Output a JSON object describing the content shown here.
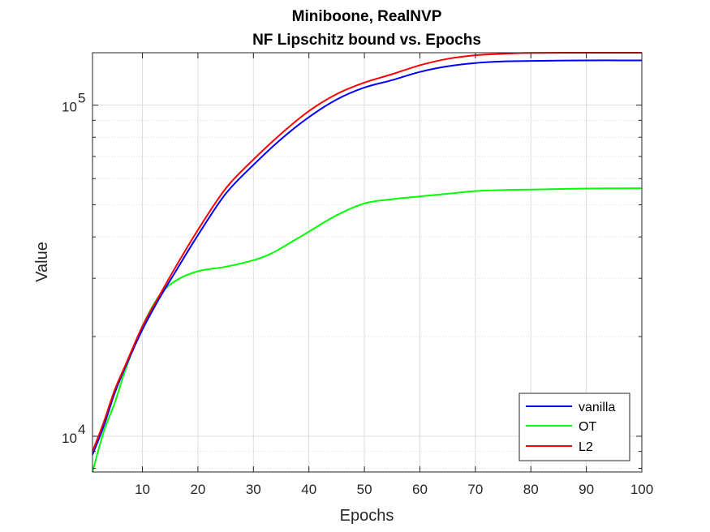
{
  "chart_data": {
    "type": "line",
    "title": [
      "Miniboone, RealNVP",
      "NF Lipschitz bound vs. Epochs"
    ],
    "xlabel": "Epochs",
    "ylabel": "Value",
    "xlim": [
      1,
      100
    ],
    "ylim": [
      7800,
      144000
    ],
    "yscale": "log",
    "grid": true,
    "minor_grid": true,
    "legend_position": "bottom-right",
    "x_ticks": [
      10,
      20,
      30,
      40,
      50,
      60,
      70,
      80,
      90,
      100
    ],
    "x_tick_labels": [
      "10",
      "20",
      "30",
      "40",
      "50",
      "60",
      "70",
      "80",
      "90",
      "100"
    ],
    "y_ticks": [
      {
        "value": 10000,
        "base": "10",
        "exp": "4"
      },
      {
        "value": 100000,
        "base": "10",
        "exp": "5"
      }
    ],
    "series": [
      {
        "name": "vanilla",
        "color": "#0000ff",
        "x": [
          1,
          3,
          5,
          7,
          10,
          13,
          16,
          20,
          25,
          30,
          35,
          40,
          45,
          50,
          55,
          60,
          65,
          70,
          75,
          80,
          90,
          100
        ],
        "y": [
          8800,
          10700,
          13500,
          16300,
          21000,
          26000,
          31500,
          40500,
          54000,
          66000,
          79000,
          92000,
          104000,
          113000,
          119000,
          126000,
          131000,
          134000,
          135500,
          136000,
          136500,
          136500
        ]
      },
      {
        "name": "OT",
        "color": "#00ff00",
        "x": [
          1,
          3,
          5,
          7,
          10,
          13,
          16,
          20,
          25,
          30,
          33,
          35,
          40,
          45,
          50,
          55,
          60,
          65,
          70,
          75,
          80,
          90,
          100
        ],
        "y": [
          7800,
          10300,
          12600,
          16000,
          21500,
          26500,
          29500,
          31500,
          32500,
          34000,
          35500,
          37000,
          41500,
          46500,
          50500,
          52000,
          53000,
          54000,
          55000,
          55400,
          55600,
          56000,
          56100
        ]
      },
      {
        "name": "L2",
        "color": "#ff0000",
        "x": [
          1,
          3,
          5,
          7,
          10,
          13,
          16,
          20,
          25,
          30,
          35,
          40,
          45,
          50,
          55,
          60,
          65,
          70,
          75,
          80,
          90,
          100
        ],
        "y": [
          9000,
          11000,
          13800,
          16500,
          21500,
          26500,
          32500,
          42000,
          56000,
          68500,
          82000,
          96000,
          108000,
          117000,
          124000,
          132000,
          138000,
          141500,
          143000,
          143800,
          144000,
          144000
        ]
      }
    ]
  }
}
